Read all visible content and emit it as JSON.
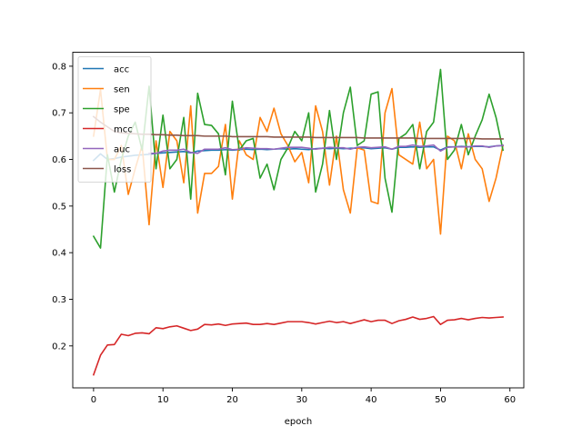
{
  "chart_data": {
    "type": "line",
    "xlabel": "epoch",
    "ylabel": "",
    "xlim": [
      -3,
      62
    ],
    "ylim": [
      0.11,
      0.83
    ],
    "xticks": [
      0,
      10,
      20,
      30,
      40,
      50,
      60
    ],
    "yticks": [
      0.2,
      0.3,
      0.4,
      0.5,
      0.6,
      0.7,
      0.8
    ],
    "legend_position": "upper-left",
    "grid": false,
    "x": [
      0,
      1,
      2,
      3,
      4,
      5,
      6,
      7,
      8,
      9,
      10,
      11,
      12,
      13,
      14,
      15,
      16,
      17,
      18,
      19,
      20,
      21,
      22,
      23,
      24,
      25,
      26,
      27,
      28,
      29,
      30,
      31,
      32,
      33,
      34,
      35,
      36,
      37,
      38,
      39,
      40,
      41,
      42,
      43,
      44,
      45,
      46,
      47,
      48,
      49,
      50,
      51,
      52,
      53,
      54,
      55,
      56,
      57,
      58,
      59
    ],
    "series": [
      {
        "name": "acc",
        "color": "#1f77b4",
        "values": [
          0.598,
          0.612,
          0.6,
          0.602,
          0.605,
          0.607,
          0.609,
          0.61,
          0.611,
          0.613,
          0.614,
          0.615,
          0.616,
          0.617,
          0.614,
          0.618,
          0.619,
          0.62,
          0.62,
          0.621,
          0.62,
          0.621,
          0.622,
          0.621,
          0.622,
          0.621,
          0.622,
          0.623,
          0.622,
          0.623,
          0.622,
          0.621,
          0.623,
          0.624,
          0.623,
          0.624,
          0.623,
          0.624,
          0.624,
          0.625,
          0.623,
          0.624,
          0.625,
          0.622,
          0.626,
          0.626,
          0.627,
          0.626,
          0.627,
          0.627,
          0.62,
          0.627,
          0.627,
          0.628,
          0.627,
          0.628,
          0.628,
          0.627,
          0.629,
          0.63
        ]
      },
      {
        "name": "sen",
        "color": "#ff7f0e",
        "values": [
          0.65,
          0.75,
          0.6,
          0.6,
          0.63,
          0.525,
          0.58,
          0.63,
          0.46,
          0.64,
          0.54,
          0.66,
          0.64,
          0.55,
          0.715,
          0.485,
          0.57,
          0.57,
          0.585,
          0.675,
          0.515,
          0.64,
          0.61,
          0.6,
          0.69,
          0.66,
          0.71,
          0.655,
          0.63,
          0.595,
          0.615,
          0.55,
          0.715,
          0.66,
          0.545,
          0.65,
          0.535,
          0.485,
          0.625,
          0.62,
          0.51,
          0.505,
          0.7,
          0.752,
          0.61,
          0.6,
          0.59,
          0.68,
          0.58,
          0.6,
          0.44,
          0.65,
          0.64,
          0.58,
          0.655,
          0.6,
          0.58,
          0.51,
          0.56,
          0.63
        ]
      },
      {
        "name": "spe",
        "color": "#2ca02c",
        "values": [
          0.435,
          0.41,
          0.61,
          0.53,
          0.6,
          0.65,
          0.68,
          0.62,
          0.757,
          0.58,
          0.695,
          0.58,
          0.6,
          0.69,
          0.515,
          0.742,
          0.675,
          0.673,
          0.655,
          0.567,
          0.725,
          0.62,
          0.64,
          0.645,
          0.56,
          0.59,
          0.535,
          0.6,
          0.625,
          0.66,
          0.64,
          0.7,
          0.53,
          0.59,
          0.705,
          0.6,
          0.7,
          0.755,
          0.63,
          0.64,
          0.74,
          0.745,
          0.56,
          0.487,
          0.645,
          0.655,
          0.675,
          0.58,
          0.66,
          0.68,
          0.793,
          0.6,
          0.62,
          0.675,
          0.61,
          0.65,
          0.685,
          0.74,
          0.69,
          0.62
        ]
      },
      {
        "name": "mcc",
        "color": "#d62728",
        "values": [
          0.138,
          0.18,
          0.202,
          0.203,
          0.225,
          0.222,
          0.227,
          0.228,
          0.226,
          0.239,
          0.237,
          0.241,
          0.243,
          0.238,
          0.233,
          0.236,
          0.246,
          0.245,
          0.247,
          0.244,
          0.247,
          0.248,
          0.249,
          0.246,
          0.246,
          0.248,
          0.246,
          0.249,
          0.252,
          0.252,
          0.252,
          0.25,
          0.247,
          0.25,
          0.253,
          0.25,
          0.252,
          0.248,
          0.252,
          0.256,
          0.252,
          0.255,
          0.255,
          0.248,
          0.254,
          0.257,
          0.262,
          0.257,
          0.259,
          0.263,
          0.246,
          0.255,
          0.256,
          0.259,
          0.256,
          0.259,
          0.261,
          0.26,
          0.261,
          0.262
        ]
      },
      {
        "name": "auc",
        "color": "#9467bd",
        "values": [
          null,
          null,
          null,
          null,
          null,
          null,
          null,
          null,
          0.613,
          0.613,
          0.618,
          0.62,
          0.62,
          0.622,
          0.615,
          0.613,
          0.622,
          0.622,
          0.622,
          0.625,
          0.621,
          0.622,
          0.625,
          0.624,
          0.623,
          0.623,
          0.622,
          0.624,
          0.626,
          0.626,
          0.626,
          0.624,
          0.622,
          0.624,
          0.626,
          0.625,
          0.625,
          0.622,
          0.626,
          0.627,
          0.625,
          0.626,
          0.627,
          0.622,
          0.628,
          0.628,
          0.631,
          0.628,
          0.629,
          0.631,
          0.618,
          0.626,
          0.627,
          0.627,
          0.627,
          0.629,
          0.629,
          0.626,
          0.629,
          0.63
        ]
      },
      {
        "name": "loss",
        "color": "#8c564b",
        "values": [
          0.692,
          0.68,
          0.67,
          0.66,
          0.657,
          0.656,
          0.655,
          0.654,
          0.654,
          0.653,
          0.653,
          0.652,
          0.652,
          0.651,
          0.651,
          0.651,
          0.65,
          0.65,
          0.65,
          0.65,
          0.649,
          0.649,
          0.649,
          0.649,
          0.649,
          0.649,
          0.648,
          0.648,
          0.648,
          0.648,
          0.648,
          0.648,
          0.647,
          0.647,
          0.647,
          0.647,
          0.647,
          0.647,
          0.647,
          0.646,
          0.646,
          0.646,
          0.646,
          0.646,
          0.646,
          0.646,
          0.646,
          0.645,
          0.645,
          0.645,
          0.645,
          0.645,
          0.645,
          0.645,
          0.645,
          0.645,
          0.644,
          0.644,
          0.644,
          0.644
        ]
      }
    ]
  }
}
